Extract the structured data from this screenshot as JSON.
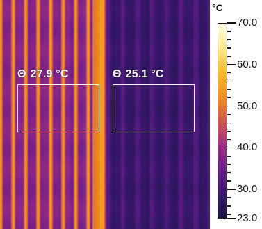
{
  "thermal_image": {
    "palette": [
      "#1b1244",
      "#3a186e",
      "#6b1e8c",
      "#a12e85",
      "#d35a4a",
      "#f1901a",
      "#fbbd24",
      "#ffe98a",
      "#fffde8"
    ],
    "left_region_tone": "warm orange/purple vertical stripes",
    "right_region_tone": "dark purple"
  },
  "measurements": [
    {
      "symbol": "Θ",
      "value": "27.9 °C"
    },
    {
      "symbol": "Θ",
      "value": "25.1 °C"
    }
  ],
  "scale": {
    "unit": "°C",
    "min": 23.0,
    "max": 70.0,
    "labels": [
      "70.0",
      "60.0",
      "50.0",
      "40.0",
      "30.0",
      "23.0"
    ],
    "label_values": [
      70,
      60,
      50,
      40,
      30,
      23
    ]
  }
}
